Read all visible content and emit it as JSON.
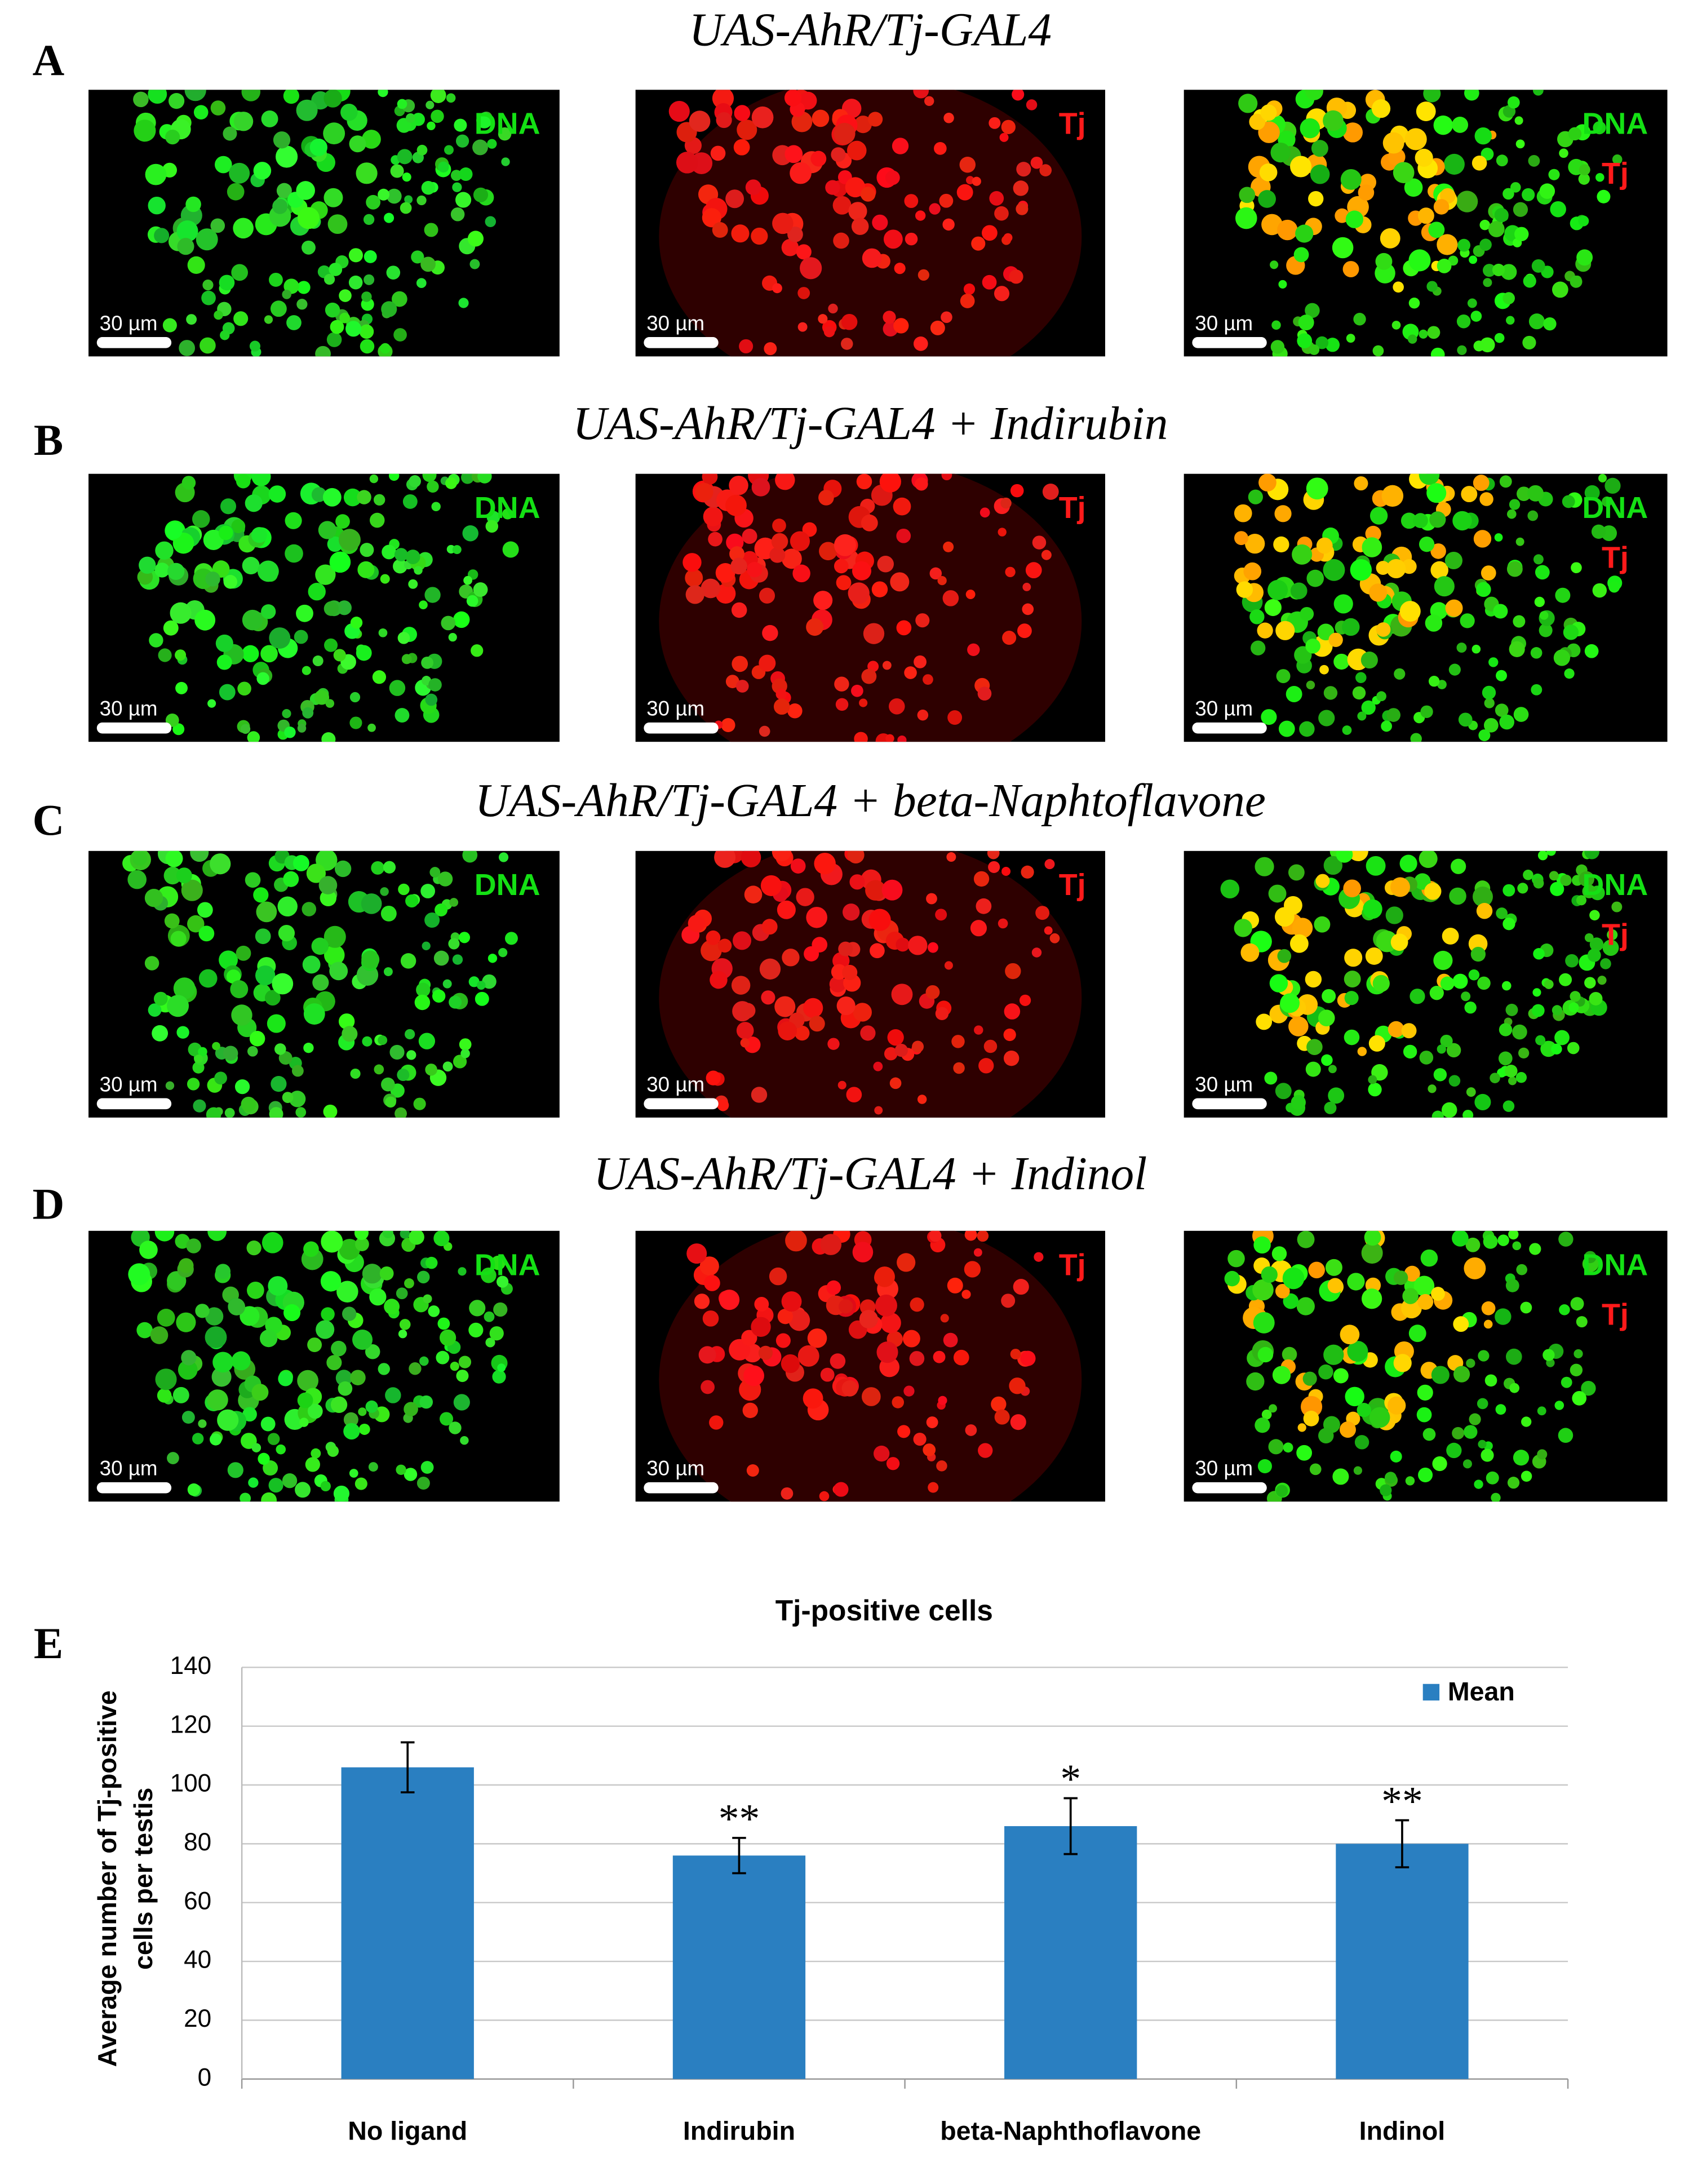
{
  "panels": [
    {
      "letter": "A",
      "title": "UAS-AhR/Tj-GAL4",
      "images": [
        {
          "labels": [
            "DNA"
          ],
          "scale_bar": "30 µm"
        },
        {
          "labels": [
            "Tj"
          ],
          "scale_bar": "30 µm"
        },
        {
          "labels": [
            "DNA",
            "Tj"
          ],
          "scale_bar": "30 µm"
        }
      ]
    },
    {
      "letter": "B",
      "title": "UAS-AhR/Tj-GAL4 + Indirubin",
      "images": [
        {
          "labels": [
            "DNA"
          ],
          "scale_bar": "30 µm"
        },
        {
          "labels": [
            "Tj"
          ],
          "scale_bar": "30 µm"
        },
        {
          "labels": [
            "DNA",
            "Tj"
          ],
          "scale_bar": "30 µm"
        }
      ]
    },
    {
      "letter": "C",
      "title": "UAS-AhR/Tj-GAL4 + beta-Naphtoflavone",
      "images": [
        {
          "labels": [
            "DNA"
          ],
          "scale_bar": "30 µm"
        },
        {
          "labels": [
            "Tj"
          ],
          "scale_bar": "30 µm"
        },
        {
          "labels": [
            "DNA",
            "Tj"
          ],
          "scale_bar": "30 µm"
        }
      ]
    },
    {
      "letter": "D",
      "title": "UAS-AhR/Tj-GAL4 + Indinol",
      "images": [
        {
          "labels": [
            "DNA"
          ],
          "scale_bar": "30 µm"
        },
        {
          "labels": [
            "Tj"
          ],
          "scale_bar": "30 µm"
        },
        {
          "labels": [
            "DNA",
            "Tj"
          ],
          "scale_bar": "30 µm"
        }
      ]
    }
  ],
  "chart_letter": "E",
  "chart_data": {
    "type": "bar",
    "title": "Tj-positive cells",
    "ylabel": [
      "Average number of Tj-positive",
      "cells per testis"
    ],
    "categories": [
      "No ligand",
      "Indirubin",
      "beta-Naphthoflavone",
      "Indinol"
    ],
    "series": [
      {
        "name": "Mean",
        "color": "#2a7fc1",
        "values": [
          106,
          76,
          86,
          80
        ],
        "errors": [
          8.5,
          6,
          9.5,
          8
        ]
      }
    ],
    "significance": [
      null,
      "**",
      "*",
      "**"
    ],
    "ylim": [
      0,
      140
    ],
    "yticks": [
      0,
      20,
      40,
      60,
      80,
      100,
      120,
      140
    ],
    "grid": true,
    "legend": "upper right"
  }
}
